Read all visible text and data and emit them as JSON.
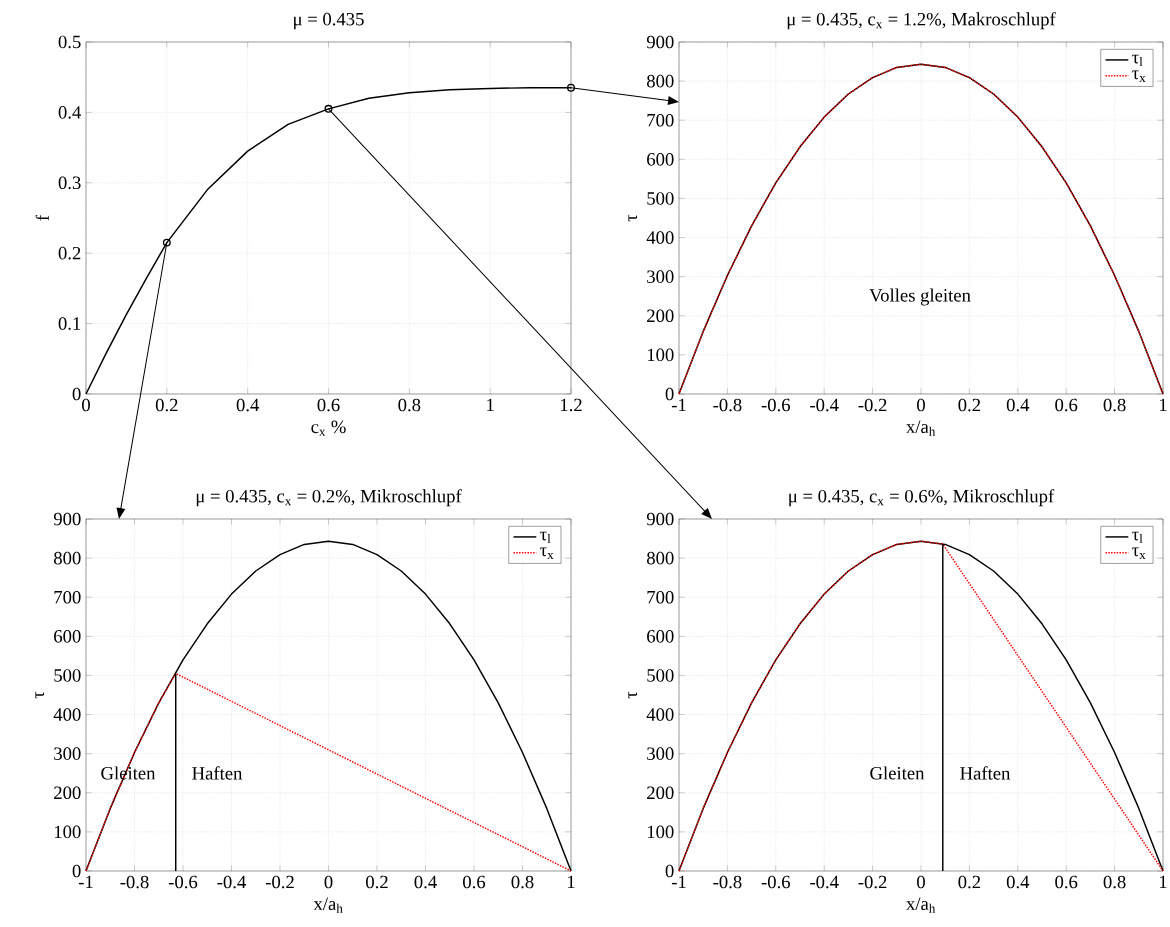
{
  "chart_data": [
    {
      "type": "line",
      "title": "μ = 0.435",
      "xlabel": "c$_{x}$ %",
      "ylabel": "f",
      "xlim": [
        0,
        1.2
      ],
      "ylim": [
        0,
        0.5
      ],
      "xticks": [
        0,
        0.2,
        0.4,
        0.6,
        0.8,
        1,
        1.2
      ],
      "yticks": [
        0,
        0.1,
        0.2,
        0.3,
        0.4,
        0.5
      ],
      "grid": true,
      "series": [
        {
          "color": "#000000",
          "x": [
            0,
            0.05,
            0.1,
            0.15,
            0.2,
            0.3,
            0.4,
            0.5,
            0.6,
            0.7,
            0.8,
            0.9,
            1.0,
            1.1,
            1.2
          ],
          "values": [
            0,
            0.058,
            0.113,
            0.165,
            0.215,
            0.29,
            0.345,
            0.383,
            0.405,
            0.42,
            0.428,
            0.432,
            0.434,
            0.435,
            0.435
          ]
        },
        {
          "type": "scatter",
          "marker": "circle",
          "color": "#000000",
          "x": [
            0.2,
            0.6,
            1.2
          ],
          "values": [
            0.215,
            0.405,
            0.435
          ]
        }
      ]
    },
    {
      "type": "line",
      "title": "μ = 0.435, c$_{x}$ = 1.2%, Makroschlupf",
      "xlabel": "x/a$_{h}$",
      "ylabel": "τ",
      "xlim": [
        -1,
        1
      ],
      "ylim": [
        0,
        900
      ],
      "xticks": [
        -1,
        -0.8,
        -0.6,
        -0.4,
        -0.2,
        0,
        0.2,
        0.4,
        0.6,
        0.8,
        1
      ],
      "yticks": [
        0,
        100,
        200,
        300,
        400,
        500,
        600,
        700,
        800,
        900
      ],
      "grid": true,
      "legend": "top right",
      "annotations": [
        "Volles gleiten"
      ],
      "series": [
        {
          "name": "τ$_{l}$",
          "color": "#000000",
          "x": [
            -1,
            -0.9,
            -0.8,
            -0.7,
            -0.6,
            -0.5,
            -0.4,
            -0.3,
            -0.2,
            -0.1,
            0,
            0.1,
            0.2,
            0.3,
            0.4,
            0.5,
            0.6,
            0.7,
            0.8,
            0.9,
            1
          ],
          "values": [
            0,
            160,
            303,
            430,
            540,
            632,
            708,
            767,
            809,
            835,
            843,
            835,
            809,
            767,
            708,
            632,
            540,
            430,
            303,
            160,
            0
          ]
        },
        {
          "name": "τ$_{x}$",
          "color": "#ff0000",
          "line_style": "dotted",
          "x": [
            -1,
            -0.9,
            -0.8,
            -0.7,
            -0.6,
            -0.5,
            -0.4,
            -0.3,
            -0.2,
            -0.1,
            0,
            0.1,
            0.2,
            0.3,
            0.4,
            0.5,
            0.6,
            0.7,
            0.8,
            0.9,
            1
          ],
          "values": [
            0,
            160,
            303,
            430,
            540,
            632,
            708,
            767,
            809,
            835,
            843,
            835,
            809,
            767,
            708,
            632,
            540,
            430,
            303,
            160,
            0
          ]
        }
      ]
    },
    {
      "type": "line",
      "title": "μ = 0.435, c$_{x}$ = 0.2%, Mikroschlupf",
      "xlabel": "x/a$_{h}$",
      "ylabel": "τ",
      "xlim": [
        -1,
        1
      ],
      "ylim": [
        0,
        900
      ],
      "xticks": [
        -1,
        -0.8,
        -0.6,
        -0.4,
        -0.2,
        0,
        0.2,
        0.4,
        0.6,
        0.8,
        1
      ],
      "yticks": [
        0,
        100,
        200,
        300,
        400,
        500,
        600,
        700,
        800,
        900
      ],
      "grid": true,
      "legend": "top right",
      "annotations": [
        "Gleiten",
        "Haften"
      ],
      "series": [
        {
          "name": "τ$_{l}$",
          "color": "#000000",
          "x": [
            -1,
            -0.9,
            -0.8,
            -0.7,
            -0.6,
            -0.5,
            -0.4,
            -0.3,
            -0.2,
            -0.1,
            0,
            0.1,
            0.2,
            0.3,
            0.4,
            0.5,
            0.6,
            0.7,
            0.8,
            0.9,
            1
          ],
          "values": [
            0,
            160,
            303,
            430,
            540,
            632,
            708,
            767,
            809,
            835,
            843,
            835,
            809,
            767,
            708,
            632,
            540,
            430,
            303,
            160,
            0
          ]
        },
        {
          "name": "τ$_{x}$",
          "color": "#ff0000",
          "line_style": "dotted",
          "x": [
            -1,
            -0.9,
            -0.8,
            -0.7,
            -0.63,
            1
          ],
          "values": [
            0,
            160,
            303,
            430,
            505,
            0
          ]
        },
        {
          "color": "#000000",
          "x": [
            -0.63,
            -0.63
          ],
          "values": [
            0,
            505
          ]
        }
      ]
    },
    {
      "type": "line",
      "title": "μ = 0.435, c$_{x}$ = 0.6%, Mikroschlupf",
      "xlabel": "x/a$_{h}$",
      "ylabel": "τ",
      "xlim": [
        -1,
        1
      ],
      "ylim": [
        0,
        900
      ],
      "xticks": [
        -1,
        -0.8,
        -0.6,
        -0.4,
        -0.2,
        0,
        0.2,
        0.4,
        0.6,
        0.8,
        1
      ],
      "yticks": [
        0,
        100,
        200,
        300,
        400,
        500,
        600,
        700,
        800,
        900
      ],
      "grid": true,
      "legend": "top right",
      "annotations": [
        "Gleiten",
        "Haften"
      ],
      "series": [
        {
          "name": "τ$_{l}$",
          "color": "#000000",
          "x": [
            -1,
            -0.9,
            -0.8,
            -0.7,
            -0.6,
            -0.5,
            -0.4,
            -0.3,
            -0.2,
            -0.1,
            0,
            0.1,
            0.2,
            0.3,
            0.4,
            0.5,
            0.6,
            0.7,
            0.8,
            0.9,
            1
          ],
          "values": [
            0,
            160,
            303,
            430,
            540,
            632,
            708,
            767,
            809,
            835,
            843,
            835,
            809,
            767,
            708,
            632,
            540,
            430,
            303,
            160,
            0
          ]
        },
        {
          "name": "τ$_{x}$",
          "color": "#ff0000",
          "line_style": "dotted",
          "x": [
            -1,
            -0.9,
            -0.8,
            -0.7,
            -0.6,
            -0.5,
            -0.4,
            -0.3,
            -0.2,
            -0.1,
            0,
            0.09,
            1
          ],
          "values": [
            0,
            160,
            303,
            430,
            540,
            632,
            708,
            767,
            809,
            835,
            843,
            836,
            0
          ]
        },
        {
          "color": "#000000",
          "x": [
            0.09,
            0.09
          ],
          "values": [
            0,
            836
          ]
        }
      ]
    }
  ]
}
